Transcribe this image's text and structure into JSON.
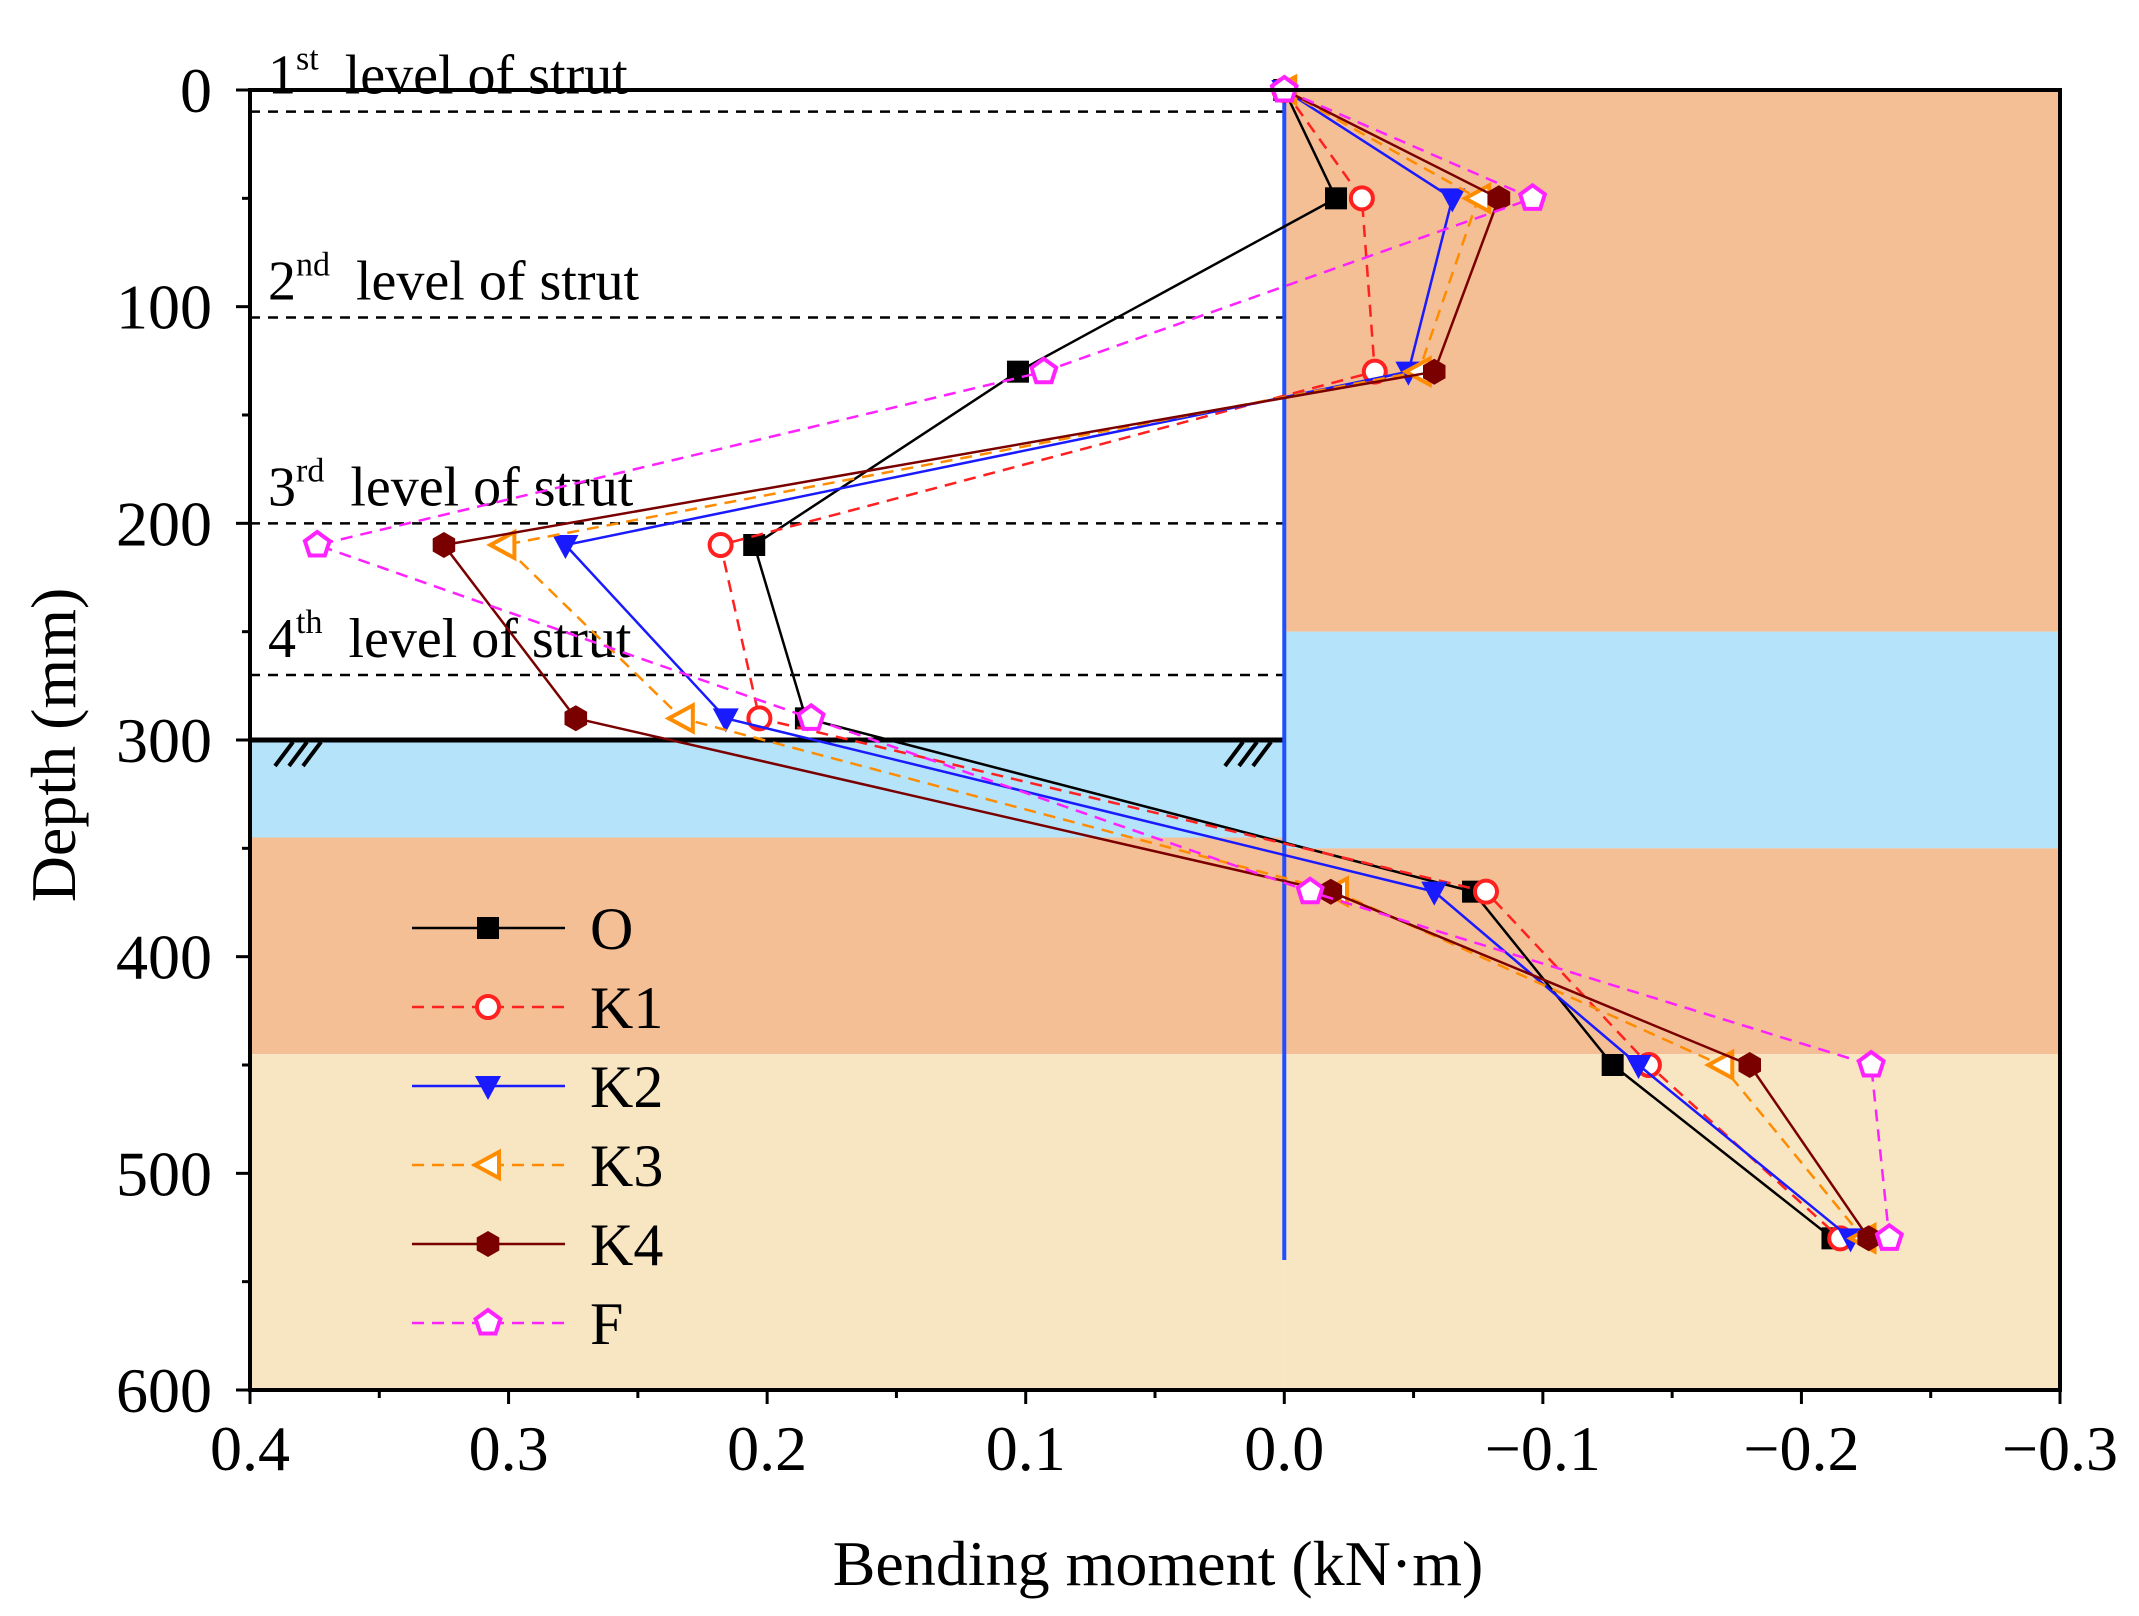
{
  "chart_data": {
    "type": "line",
    "title": "",
    "xlabel": "Bending moment (kN·m)",
    "ylabel": "Depth (mm)",
    "xlim": [
      0.4,
      -0.3
    ],
    "ylim": [
      0,
      600
    ],
    "x_ticks": [
      0.4,
      0.3,
      0.2,
      0.1,
      0.0,
      -0.1,
      -0.2,
      -0.3
    ],
    "x_tick_labels": [
      "0.4",
      "0.3",
      "0.2",
      "0.1",
      "0.0",
      "−0.1",
      "−0.2",
      "−0.3"
    ],
    "y_ticks": [
      0,
      100,
      200,
      300,
      400,
      500,
      600
    ],
    "y_tick_labels": [
      "0",
      "100",
      "200",
      "300",
      "400",
      "500",
      "600"
    ],
    "depth_points": [
      0,
      50,
      130,
      210,
      290,
      370,
      450,
      530
    ],
    "series": [
      {
        "name": "O",
        "color": "#000000",
        "dash": "solid",
        "marker": "square",
        "values": [
          0,
          -0.02,
          0.103,
          0.205,
          0.185,
          -0.073,
          -0.127,
          -0.212
        ]
      },
      {
        "name": "K1",
        "color": "#ff2020",
        "dash": "dashed",
        "marker": "circle-open",
        "values": [
          0,
          -0.03,
          -0.035,
          0.218,
          0.203,
          -0.078,
          -0.141,
          -0.215
        ]
      },
      {
        "name": "K2",
        "color": "#1a1aff",
        "dash": "solid",
        "marker": "triangle-down",
        "values": [
          0,
          -0.065,
          -0.048,
          0.278,
          0.216,
          -0.058,
          -0.137,
          -0.219
        ]
      },
      {
        "name": "K3",
        "color": "#ff8c00",
        "dash": "dashed",
        "marker": "triangle-left-open",
        "values": [
          0,
          -0.075,
          -0.052,
          0.302,
          0.233,
          -0.02,
          -0.169,
          -0.224
        ]
      },
      {
        "name": "K4",
        "color": "#7a0000",
        "dash": "solid",
        "marker": "hexagon",
        "values": [
          0,
          -0.083,
          -0.058,
          0.325,
          0.274,
          -0.018,
          -0.18,
          -0.226
        ]
      },
      {
        "name": "F",
        "color": "#ff22ff",
        "dash": "dashed",
        "marker": "pentagon-open",
        "values": [
          0,
          -0.096,
          0.093,
          0.374,
          0.183,
          -0.01,
          -0.227,
          -0.234
        ]
      }
    ],
    "strut_levels": [
      {
        "depth": 10,
        "num": "1",
        "sup": "st",
        "text": "level of strut"
      },
      {
        "depth": 105,
        "num": "2",
        "sup": "nd",
        "text": "level of strut"
      },
      {
        "depth": 200,
        "num": "3",
        "sup": "rd",
        "text": "level of strut"
      },
      {
        "depth": 270,
        "num": "4",
        "sup": "th",
        "text": "level of strut"
      }
    ],
    "excavation_depth": 300,
    "soil_layers": {
      "left": [
        {
          "from": 300,
          "to": 345,
          "color": "#b4e3fa"
        },
        {
          "from": 345,
          "to": 445,
          "color": "#f5bf95"
        },
        {
          "from": 445,
          "to": 600,
          "color": "#f8e6c2"
        }
      ],
      "right": [
        {
          "from": 0,
          "to": 250,
          "color": "#f5bf95"
        },
        {
          "from": 250,
          "to": 350,
          "color": "#b4e3fa"
        },
        {
          "from": 350,
          "to": 445,
          "color": "#f5bf95"
        },
        {
          "from": 445,
          "to": 600,
          "color": "#f8e6c2"
        }
      ]
    },
    "wall": {
      "x": 0.0,
      "from": 0,
      "to": 540,
      "color": "#1f4fff"
    },
    "legend_position": "left-center"
  }
}
